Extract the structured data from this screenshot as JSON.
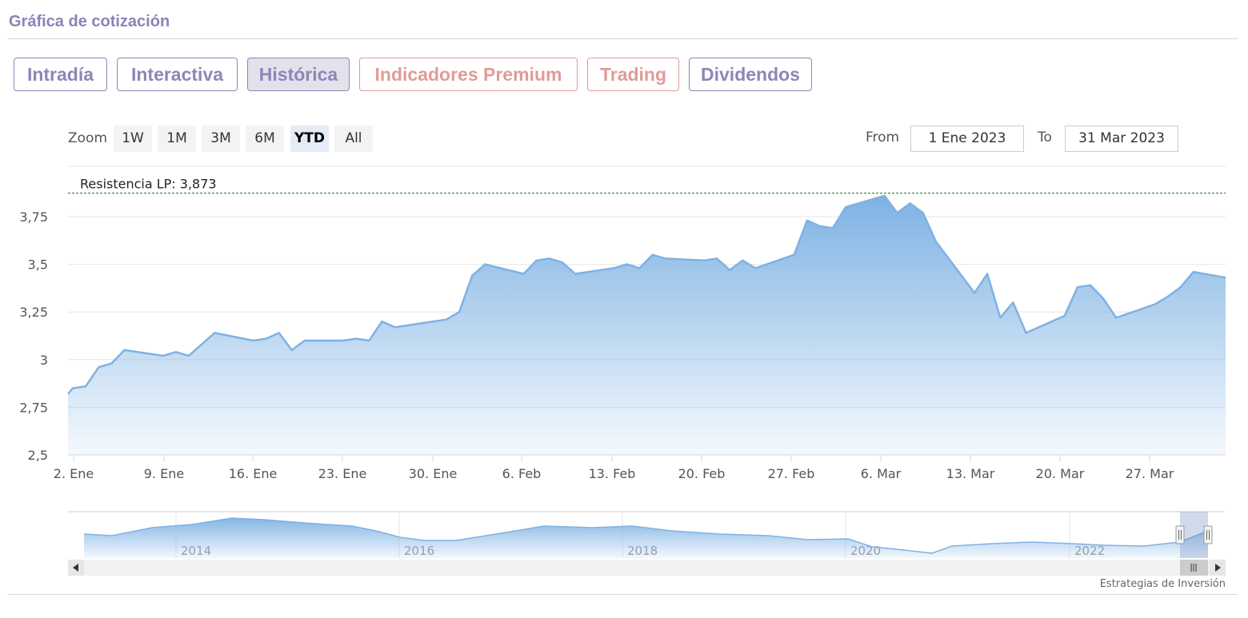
{
  "page_title": "Gráfica de cotización",
  "tabs": [
    {
      "label": "Intradía",
      "style": "normal",
      "active": false
    },
    {
      "label": "Interactiva",
      "style": "normal",
      "active": false
    },
    {
      "label": "Histórica",
      "style": "normal",
      "active": true
    },
    {
      "label": "Indicadores Premium",
      "style": "red",
      "active": false
    },
    {
      "label": "Trading",
      "style": "red",
      "active": false
    },
    {
      "label": "Dividendos",
      "style": "normal",
      "active": false
    }
  ],
  "zoom": {
    "label": "Zoom",
    "buttons": [
      "1W",
      "1M",
      "3M",
      "6M",
      "YTD",
      "All"
    ],
    "selected": "YTD"
  },
  "range": {
    "from_label": "From",
    "from_value": "1 Ene 2023",
    "to_label": "To",
    "to_value": "31 Mar 2023"
  },
  "colors": {
    "accent": "#8d86b7",
    "premium": "#e09c97",
    "series_line": "#7eb2e3",
    "resistance_line": "#1f6e1f"
  },
  "chart_data": {
    "type": "area",
    "title": "",
    "xlabel": "",
    "ylabel": "",
    "x_ticks": [
      "2. Ene",
      "9. Ene",
      "16. Ene",
      "23. Ene",
      "30. Ene",
      "6. Feb",
      "13. Feb",
      "20. Feb",
      "27. Feb",
      "6. Mar",
      "13. Mar",
      "20. Mar",
      "27. Mar"
    ],
    "x_range": [
      "2023-01-01",
      "2023-03-31"
    ],
    "y_ticks": [
      "2,5",
      "2,75",
      "3",
      "3,25",
      "3,5",
      "3,75"
    ],
    "ylim": [
      2.5,
      3.9
    ],
    "grid": true,
    "resistance": {
      "label": "Resistencia LP: 3,873",
      "value": 3.873
    },
    "series": [
      {
        "x": [
          "2023-01-01",
          "2023-01-02",
          "2023-01-03",
          "2023-01-04",
          "2023-01-05",
          "2023-01-06",
          "2023-01-09",
          "2023-01-10",
          "2023-01-11",
          "2023-01-12",
          "2023-01-13",
          "2023-01-16",
          "2023-01-17",
          "2023-01-18",
          "2023-01-19",
          "2023-01-20",
          "2023-01-23",
          "2023-01-24",
          "2023-01-25",
          "2023-01-26",
          "2023-01-27",
          "2023-01-30",
          "2023-01-31",
          "2023-02-01",
          "2023-02-02",
          "2023-02-03",
          "2023-02-06",
          "2023-02-07",
          "2023-02-08",
          "2023-02-09",
          "2023-02-10",
          "2023-02-13",
          "2023-02-14",
          "2023-02-15",
          "2023-02-16",
          "2023-02-17",
          "2023-02-20",
          "2023-02-21",
          "2023-02-22",
          "2023-02-23",
          "2023-02-24",
          "2023-02-27",
          "2023-02-28",
          "2023-03-01",
          "2023-03-02",
          "2023-03-03",
          "2023-03-06",
          "2023-03-07",
          "2023-03-08",
          "2023-03-09",
          "2023-03-10",
          "2023-03-13",
          "2023-03-14",
          "2023-03-15",
          "2023-03-16",
          "2023-03-17",
          "2023-03-20",
          "2023-03-21",
          "2023-03-22",
          "2023-03-23",
          "2023-03-24",
          "2023-03-27",
          "2023-03-28",
          "2023-03-29",
          "2023-03-30",
          "2023-03-31"
        ],
        "y": [
          2.82,
          2.85,
          2.86,
          2.96,
          2.98,
          3.05,
          3.02,
          3.04,
          3.02,
          3.08,
          3.14,
          3.1,
          3.11,
          3.14,
          3.05,
          3.1,
          3.1,
          3.11,
          3.1,
          3.2,
          3.17,
          3.2,
          3.21,
          3.25,
          3.44,
          3.5,
          3.45,
          3.52,
          3.53,
          3.51,
          3.45,
          3.48,
          3.5,
          3.48,
          3.55,
          3.53,
          3.52,
          3.53,
          3.47,
          3.52,
          3.48,
          3.55,
          3.73,
          3.7,
          3.69,
          3.8,
          3.86,
          3.77,
          3.82,
          3.77,
          3.62,
          3.35,
          3.45,
          3.22,
          3.3,
          3.14,
          3.23,
          3.38,
          3.39,
          3.32,
          3.22,
          3.29,
          3.33,
          3.38,
          3.46,
          3.43
        ]
      }
    ],
    "navigator": {
      "x_ticks": [
        "2014",
        "2016",
        "2018",
        "2020",
        "2022"
      ]
    }
  },
  "credits": "Estrategias de Inversión",
  "icons": {
    "scroll_left": "left-arrow-icon",
    "scroll_right": "right-arrow-icon",
    "scroll_grip": "grip-icon"
  }
}
